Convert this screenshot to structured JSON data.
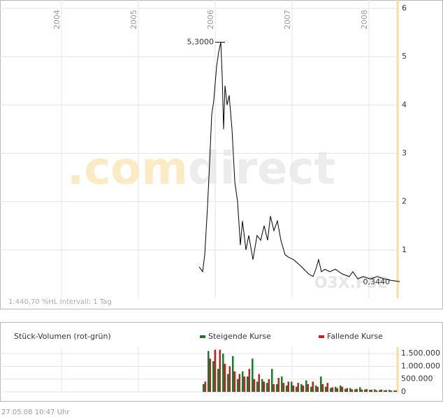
{
  "chart_data": [
    {
      "type": "line",
      "xlim": [
        2003.2,
        2008.4
      ],
      "xticks": [
        2004,
        2005,
        2006,
        2007,
        2008
      ],
      "ylim": [
        0,
        6
      ],
      "yticks": [
        1,
        2,
        3,
        4,
        5,
        6
      ],
      "grid": true,
      "color": "#000000",
      "x": [
        2005.791,
        2005.836,
        2005.864,
        2005.9,
        2005.927,
        2005.955,
        2005.982,
        2006.018,
        2006.045,
        2006.073,
        2006.091,
        2006.109,
        2006.127,
        2006.155,
        2006.182,
        2006.218,
        2006.255,
        2006.291,
        2006.327,
        2006.355,
        2006.4,
        2006.436,
        2006.491,
        2006.545,
        2006.591,
        2006.636,
        2006.682,
        2006.718,
        2006.764,
        2006.809,
        2006.855,
        2006.909,
        2006.955,
        2007.018,
        2007.091,
        2007.155,
        2007.218,
        2007.273,
        2007.309,
        2007.345,
        2007.382,
        2007.427,
        2007.491,
        2007.564,
        2007.655,
        2007.745,
        2007.791,
        2007.855,
        2007.927,
        2008.018,
        2008.109,
        2008.2,
        2008.291,
        2008.4
      ],
      "values": [
        0.65,
        0.55,
        0.9,
        1.9,
        2.8,
        3.8,
        4.1,
        4.8,
        5.1,
        5.3,
        4.6,
        3.5,
        4.4,
        4.0,
        4.2,
        3.5,
        2.4,
        2.0,
        1.1,
        1.6,
        1.0,
        1.3,
        0.8,
        1.3,
        1.2,
        1.5,
        1.2,
        1.7,
        1.4,
        1.6,
        1.2,
        0.9,
        0.85,
        0.8,
        0.7,
        0.6,
        0.5,
        0.45,
        0.6,
        0.8,
        0.55,
        0.6,
        0.55,
        0.6,
        0.5,
        0.45,
        0.55,
        0.4,
        0.45,
        0.4,
        0.45,
        0.4,
        0.37,
        0.344
      ],
      "high_label": "5,3000",
      "low_label": "0,3440",
      "watermark_prefix": ".com",
      "watermark_suffix": "direct",
      "symbol": "O3X.FSE",
      "footnote": "1:440,70 %HL Intervall: 1 Tag"
    },
    {
      "type": "bar",
      "title": "Stück-Volumen (rot-grün)",
      "xlim": [
        2003.2,
        2008.4
      ],
      "ylim": [
        0,
        1750000
      ],
      "yticks": [
        0,
        {
          "value": 500000,
          "label": "500.000"
        },
        {
          "value": 1000000,
          "label": "1.000.000"
        },
        {
          "value": 1500000,
          "label": "1.500.000"
        }
      ],
      "x": [
        2005.836,
        2005.9,
        2005.964,
        2006.027,
        2006.091,
        2006.155,
        2006.218,
        2006.282,
        2006.345,
        2006.409,
        2006.473,
        2006.536,
        2006.6,
        2006.664,
        2006.727,
        2006.791,
        2006.855,
        2006.918,
        2006.982,
        2007.045,
        2007.109,
        2007.173,
        2007.236,
        2007.3,
        2007.364,
        2007.427,
        2007.491,
        2007.555,
        2007.618,
        2007.682,
        2007.745,
        2007.809,
        2007.873,
        2007.936,
        2008.0,
        2008.064,
        2008.127,
        2008.191,
        2008.255,
        2008.318
      ],
      "series": [
        {
          "name": "Steigende Kurse",
          "color": "#1a7a2a",
          "values": [
            300000,
            1600000,
            1200000,
            900000,
            1500000,
            700000,
            1400000,
            500000,
            800000,
            600000,
            1300000,
            400000,
            500000,
            350000,
            900000,
            300000,
            600000,
            250000,
            400000,
            200000,
            300000,
            450000,
            200000,
            250000,
            600000,
            200000,
            150000,
            200000,
            250000,
            120000,
            150000,
            100000,
            180000,
            90000,
            80000,
            100000,
            70000,
            60000,
            80000,
            50000
          ]
        },
        {
          "name": "Fallende Kurse",
          "color": "#c81e1e",
          "values": [
            400000,
            1300000,
            1650000,
            1650000,
            1100000,
            1000000,
            800000,
            700000,
            600000,
            900000,
            500000,
            700000,
            400000,
            500000,
            300000,
            550000,
            350000,
            400000,
            250000,
            350000,
            250000,
            300000,
            400000,
            200000,
            300000,
            350000,
            180000,
            150000,
            200000,
            150000,
            100000,
            120000,
            90000,
            110000,
            80000,
            60000,
            90000,
            70000,
            50000,
            60000
          ]
        }
      ]
    }
  ],
  "timestamp": "27.05.08   10:47 Uhr"
}
